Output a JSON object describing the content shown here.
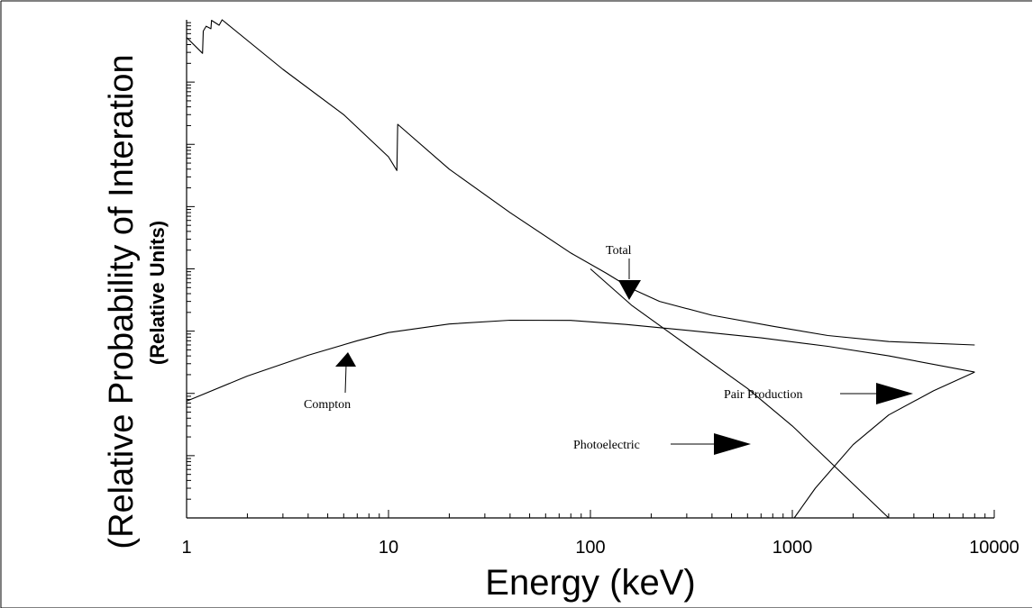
{
  "chart_data": {
    "type": "line",
    "title": "",
    "xlabel": "Energy (keV)",
    "ylabel": "(Relative Probability of Interation",
    "ylabel_sub": "(Relative Units)",
    "x_scale": "log",
    "y_scale": "log",
    "xlim": [
      1,
      10000
    ],
    "ylim": [
      1,
      100000000
    ],
    "grid": false,
    "legend": "none",
    "x_tick_labels": [
      "1",
      "10",
      "100",
      "1000",
      "10000"
    ],
    "x_ticks": [
      1,
      10,
      100,
      1000,
      10000
    ],
    "series": [
      {
        "name": "Total",
        "x": [
          1,
          1.2,
          1.21,
          1.25,
          1.32,
          1.33,
          1.45,
          1.5,
          3,
          6,
          10,
          11,
          11.1,
          20,
          40,
          80,
          120,
          160,
          220,
          400,
          800,
          1500,
          3000,
          8000
        ],
        "y": [
          52000000,
          29000000,
          66000000,
          79000000,
          72000000,
          98000000,
          82000000,
          100000000,
          16000000,
          3000000,
          630000,
          380000,
          2100000,
          400000,
          80000,
          18000,
          8500,
          4800,
          3000,
          1800,
          1200,
          850,
          680,
          600
        ]
      },
      {
        "name": "Photoelectric",
        "x": [
          100,
          160,
          300,
          600,
          1000,
          3000
        ],
        "y": [
          10000,
          2600,
          600,
          120,
          30,
          1
        ]
      },
      {
        "name": "Compton",
        "x": [
          1,
          2,
          4,
          7,
          10,
          20,
          40,
          80,
          150,
          300,
          700,
          1500,
          3000,
          8000
        ],
        "y": [
          75,
          190,
          410,
          700,
          950,
          1300,
          1500,
          1490,
          1280,
          1030,
          780,
          570,
          400,
          220
        ]
      },
      {
        "name": "Pair Production",
        "x": [
          1022,
          1300,
          2000,
          3000,
          5000,
          8000
        ],
        "y": [
          1,
          3,
          15,
          45,
          110,
          220
        ]
      }
    ],
    "annotations": [
      {
        "text": "Total"
      },
      {
        "text": "Compton"
      },
      {
        "text": "Photoelectric"
      },
      {
        "text": "Pair Production"
      }
    ]
  }
}
